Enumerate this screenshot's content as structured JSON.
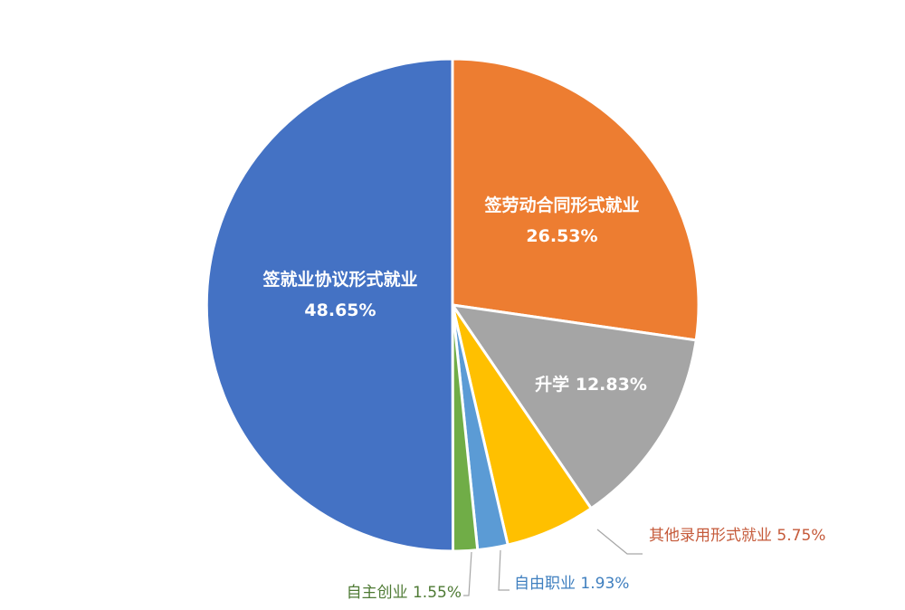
{
  "chart_data": {
    "type": "pie",
    "slices": [
      {
        "label": "签劳动合同形式就业",
        "value": 26.53,
        "value_text": "26.53%",
        "color": "#ED7D31",
        "label_color": "#FFFFFF"
      },
      {
        "label": "升学",
        "value": 12.83,
        "value_text": "12.83%",
        "color": "#A5A5A5",
        "label_color": "#FFFFFF"
      },
      {
        "label": "其他录用形式就业",
        "value": 5.75,
        "value_text": "5.75%",
        "color": "#FFC000",
        "label_color": "#C55A3A"
      },
      {
        "label": "自由职业",
        "value": 1.93,
        "value_text": "1.93%",
        "color": "#5B9BD5",
        "label_color": "#3F7FBF"
      },
      {
        "label": "自主创业",
        "value": 1.55,
        "value_text": "1.55%",
        "color": "#70AD47",
        "label_color": "#4E7A34"
      },
      {
        "label": "签就业协议形式就业",
        "value": 48.65,
        "value_text": "48.65%",
        "color": "#4472C4",
        "label_color": "#FFFFFF"
      }
    ]
  }
}
